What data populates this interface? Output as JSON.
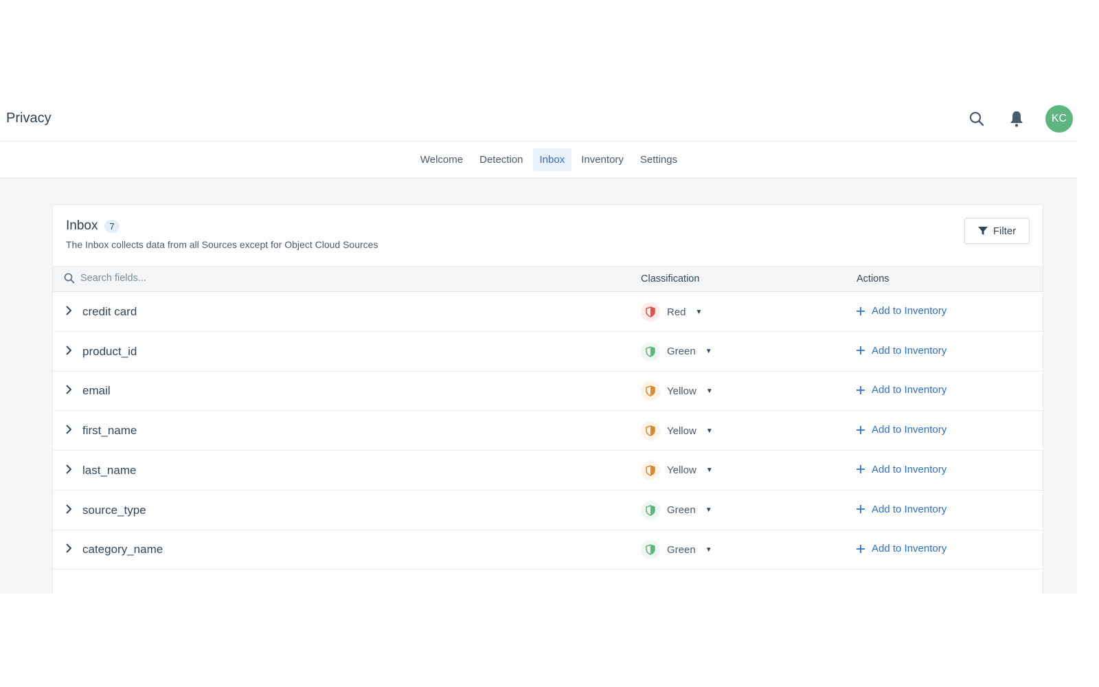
{
  "header": {
    "title": "Privacy",
    "avatar_initials": "KC"
  },
  "nav": {
    "tabs": [
      {
        "label": "Welcome"
      },
      {
        "label": "Detection"
      },
      {
        "label": "Inbox",
        "active": true
      },
      {
        "label": "Inventory"
      },
      {
        "label": "Settings"
      }
    ]
  },
  "card": {
    "title": "Inbox",
    "count": "7",
    "description": "The Inbox collects data from all Sources except for Object Cloud Sources",
    "filter_label": "Filter"
  },
  "table": {
    "search_placeholder": "Search fields...",
    "columns": {
      "classification": "Classification",
      "actions": "Actions"
    },
    "rows": [
      {
        "field": "credit card",
        "classification": "Red",
        "action": "Add to Inventory"
      },
      {
        "field": "product_id",
        "classification": "Green",
        "action": "Add to Inventory"
      },
      {
        "field": "email",
        "classification": "Yellow",
        "action": "Add to Inventory"
      },
      {
        "field": "first_name",
        "classification": "Yellow",
        "action": "Add to Inventory"
      },
      {
        "field": "last_name",
        "classification": "Yellow",
        "action": "Add to Inventory"
      },
      {
        "field": "source_type",
        "classification": "Green",
        "action": "Add to Inventory"
      },
      {
        "field": "category_name",
        "classification": "Green",
        "action": "Add to Inventory"
      }
    ]
  },
  "colors": {
    "Red": {
      "fg": "#e0534a",
      "bg": "#fdecea"
    },
    "Green": {
      "fg": "#5fb57f",
      "bg": "#eef7f1"
    },
    "Yellow": {
      "fg": "#dd8a2e",
      "bg": "#fdf3e8"
    },
    "accent": "#2c6ecb"
  }
}
